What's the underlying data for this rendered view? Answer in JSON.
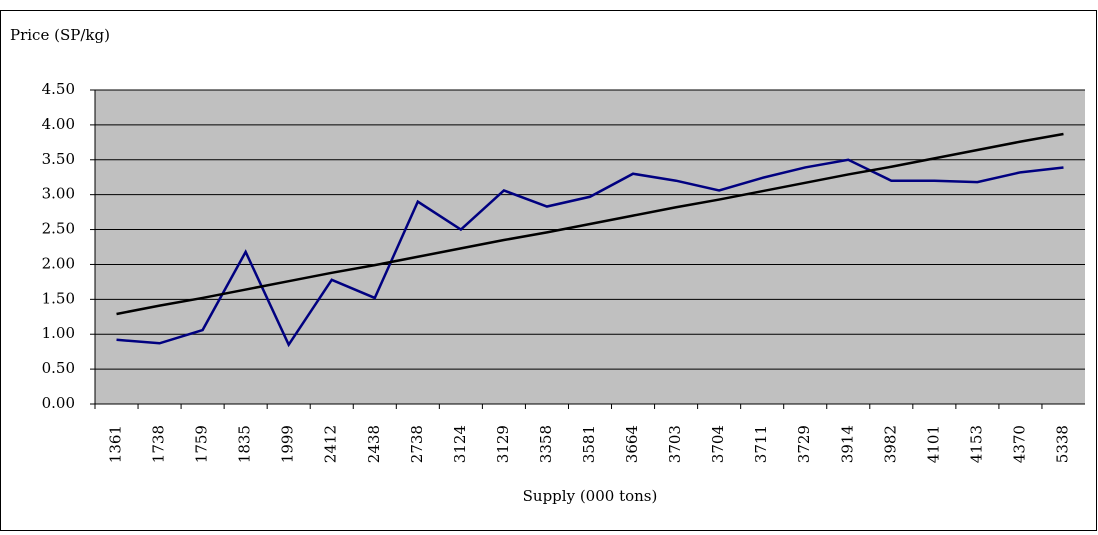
{
  "chart_data": {
    "type": "line",
    "y_label": "Price (SP/kg)",
    "x_label": "Supply (000 tons)",
    "categories": [
      "1361",
      "1738",
      "1759",
      "1835",
      "1999",
      "2412",
      "2438",
      "2738",
      "3124",
      "3129",
      "3358",
      "3581",
      "3664",
      "3703",
      "3704",
      "3711",
      "3729",
      "3914",
      "3982",
      "4101",
      "4153",
      "4370",
      "5338"
    ],
    "series": [
      {
        "color": "#000080",
        "values": [
          0.92,
          0.87,
          1.06,
          2.18,
          0.85,
          1.78,
          1.52,
          2.9,
          2.5,
          3.06,
          2.83,
          2.97,
          3.3,
          3.2,
          3.06,
          3.24,
          3.39,
          3.5,
          3.2,
          3.2,
          3.18,
          3.32,
          3.39
        ]
      },
      {
        "color": "#000000",
        "values": [
          1.29,
          1.41,
          1.52,
          1.64,
          1.76,
          1.88,
          1.99,
          2.11,
          2.23,
          2.35,
          2.46,
          2.58,
          2.7,
          2.82,
          2.93,
          3.05,
          3.17,
          3.29,
          3.4,
          3.52,
          3.64,
          3.76,
          3.87
        ]
      }
    ],
    "ylim": [
      0,
      4.5
    ],
    "yticks": [
      {
        "value": 0,
        "label": "0.00"
      },
      {
        "value": 0.5,
        "label": "0.50"
      },
      {
        "value": 1,
        "label": "1.00"
      },
      {
        "value": 1.5,
        "label": "1.50"
      },
      {
        "value": 2,
        "label": "2.00"
      },
      {
        "value": 2.5,
        "label": "2.50"
      },
      {
        "value": 3,
        "label": "3.00"
      },
      {
        "value": 3.5,
        "label": "3.50"
      },
      {
        "value": 4,
        "label": "4.00"
      },
      {
        "value": 4.5,
        "label": "4.50"
      }
    ],
    "grid": true,
    "plot_background": "#c0c0c0"
  }
}
